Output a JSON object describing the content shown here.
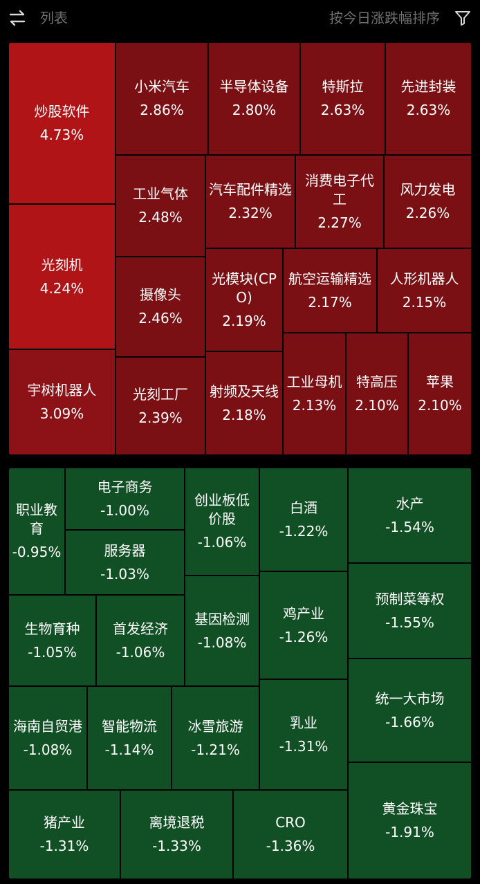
{
  "header": {
    "list_label": "列表",
    "sort_label": "按今日涨跌幅排序",
    "swap_icon": "swap-arrows-icon",
    "filter_icon": "filter-funnel-icon"
  },
  "colors": {
    "up_strong": "#b01416",
    "up_medium": "#8c1217",
    "up_weak": "#7a1014",
    "down": "#114f24"
  },
  "gainers": [
    {
      "name": "炒股软件",
      "pct": "4.73%"
    },
    {
      "name": "光刻机",
      "pct": "4.24%"
    },
    {
      "name": "宇树机器人",
      "pct": "3.09%"
    },
    {
      "name": "小米汽车",
      "pct": "2.86%"
    },
    {
      "name": "半导体设备",
      "pct": "2.80%"
    },
    {
      "name": "特斯拉",
      "pct": "2.63%"
    },
    {
      "name": "先进封装",
      "pct": "2.63%"
    },
    {
      "name": "工业气体",
      "pct": "2.48%"
    },
    {
      "name": "汽车配件精选",
      "pct": "2.32%"
    },
    {
      "name": "消费电子代工",
      "pct": "2.27%"
    },
    {
      "name": "风力发电",
      "pct": "2.26%"
    },
    {
      "name": "摄像头",
      "pct": "2.46%"
    },
    {
      "name": "光模块(CPO)",
      "pct": "2.19%"
    },
    {
      "name": "航空运输精选",
      "pct": "2.17%"
    },
    {
      "name": "人形机器人",
      "pct": "2.15%"
    },
    {
      "name": "光刻工厂",
      "pct": "2.39%"
    },
    {
      "name": "射频及天线",
      "pct": "2.18%"
    },
    {
      "name": "工业母机",
      "pct": "2.13%"
    },
    {
      "name": "特高压",
      "pct": "2.10%"
    },
    {
      "name": "苹果",
      "pct": "2.10%"
    }
  ],
  "losers": [
    {
      "name": "职业教育",
      "pct": "-0.95%"
    },
    {
      "name": "电子商务",
      "pct": "-1.00%"
    },
    {
      "name": "服务器",
      "pct": "-1.03%"
    },
    {
      "name": "创业板低价股",
      "pct": "-1.06%"
    },
    {
      "name": "白酒",
      "pct": "-1.22%"
    },
    {
      "name": "水产",
      "pct": "-1.54%"
    },
    {
      "name": "生物育种",
      "pct": "-1.05%"
    },
    {
      "name": "首发经济",
      "pct": "-1.06%"
    },
    {
      "name": "基因检测",
      "pct": "-1.08%"
    },
    {
      "name": "鸡产业",
      "pct": "-1.26%"
    },
    {
      "name": "预制菜等权",
      "pct": "-1.55%"
    },
    {
      "name": "海南自贸港",
      "pct": "-1.08%"
    },
    {
      "name": "智能物流",
      "pct": "-1.14%"
    },
    {
      "name": "冰雪旅游",
      "pct": "-1.21%"
    },
    {
      "name": "乳业",
      "pct": "-1.31%"
    },
    {
      "name": "统一大市场",
      "pct": "-1.66%"
    },
    {
      "name": "猪产业",
      "pct": "-1.31%"
    },
    {
      "name": "离境退税",
      "pct": "-1.33%"
    },
    {
      "name": "CRO",
      "pct": "-1.36%"
    },
    {
      "name": "黄金珠宝",
      "pct": "-1.91%"
    }
  ]
}
